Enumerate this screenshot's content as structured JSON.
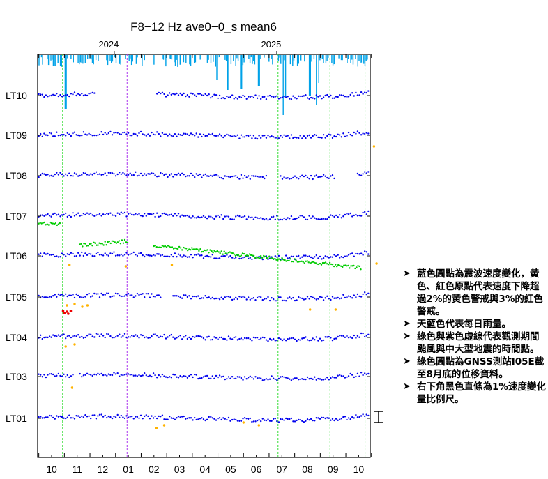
{
  "chart_data": {
    "type": "scatter",
    "title": "F8−12 Hz  ave0−0_s  mean6",
    "years": [
      {
        "label": "2024",
        "month_index": 2.45
      },
      {
        "label": "2025",
        "month_index": 8.8
      }
    ],
    "months": [
      "10",
      "11",
      "12",
      "01",
      "02",
      "03",
      "04",
      "05",
      "06",
      "07",
      "08",
      "09",
      "10"
    ],
    "xlim_months": [
      -0.5,
      12.5
    ],
    "stations": [
      "LT10",
      "LT09",
      "LT08",
      "LT07",
      "LT06",
      "LT05",
      "LT04",
      "LT03",
      "LT01"
    ],
    "station_baseline_y": [
      137,
      194,
      252,
      310,
      367,
      426,
      484,
      540,
      600
    ],
    "green_event_lines_month": [
      0.43,
      8.85,
      10.88,
      12.25
    ],
    "purple_event_lines_month": [
      2.95
    ],
    "scale_bar_label": "1%",
    "colors": {
      "velocity": "#0000ee",
      "yellow_alert": "#ffb300",
      "red_alert": "#ee0000",
      "rain": "#00a2e8",
      "gnss": "#00cc00",
      "typhoon_line": "#33dd33",
      "earthquake_line": "#aa33ee"
    }
  },
  "notes": [
    "藍色圓點為震波速度變化，黃色、紅色原點代表速度下降超過2%的黃色警戒與3%的紅色警戒。",
    "天藍色代表每日雨量。",
    "綠色與紫色虛線代表觀測期間颱風與中大型地震的時間點。",
    "綠色圓點為GNSS測站I05E截至8月底的位移資料。",
    "右下角黑色直條為1%速度變化量比例尺。"
  ]
}
